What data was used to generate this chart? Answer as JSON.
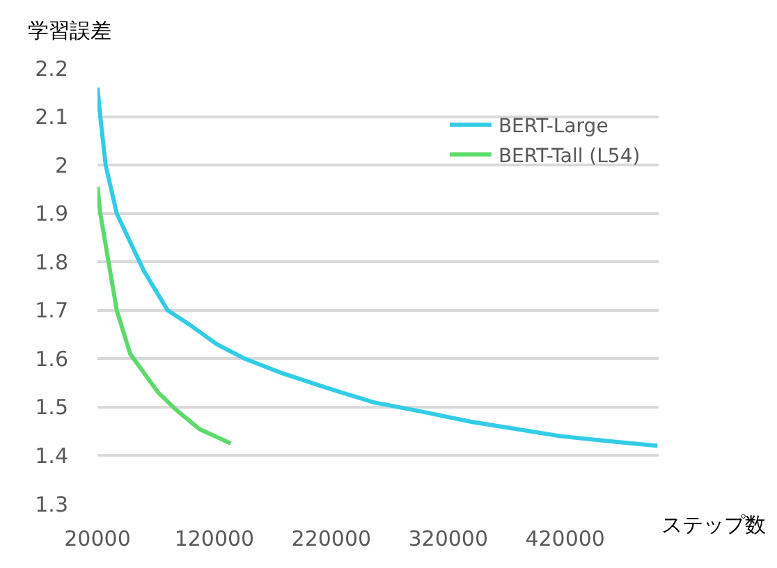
{
  "chart_data": {
    "type": "line",
    "ylabel": "学習誤差",
    "xlabel": "ステップ数",
    "xlim": [
      20000,
      500000
    ],
    "xticks": [
      20000,
      120000,
      220000,
      320000,
      420000
    ],
    "ylim": [
      1.3,
      2.2
    ],
    "yticks": [
      1.3,
      1.4,
      1.5,
      1.6,
      1.7,
      1.8,
      1.9,
      2,
      2.1,
      2.2
    ],
    "grid": "y",
    "legend": "top right",
    "marker": "none",
    "line_style": "solid",
    "series": [
      {
        "name": "BERT-Large",
        "color": "#33cce6",
        "x": [
          20000,
          22400,
          27000,
          36500,
          56000,
          60000,
          80000,
          99000,
          122000,
          146000,
          178000,
          216000,
          256000,
          299000,
          339000,
          378000,
          416000,
          456000,
          499000
        ],
        "values": [
          2.16,
          2.1,
          2.0,
          1.9,
          1.8,
          1.78,
          1.7,
          1.67,
          1.63,
          1.6,
          1.57,
          1.54,
          1.51,
          1.49,
          1.47,
          1.455,
          1.44,
          1.43,
          1.42
        ]
      },
      {
        "name": "BERT-Tall (L54)",
        "color": "#5cdb6a",
        "x": [
          20000,
          22400,
          33000,
          36500,
          48000,
          60000,
          72000,
          87000,
          107000,
          134000
        ],
        "values": [
          1.955,
          1.9,
          1.75,
          1.7,
          1.61,
          1.57,
          1.53,
          1.495,
          1.455,
          1.425
        ]
      }
    ]
  }
}
